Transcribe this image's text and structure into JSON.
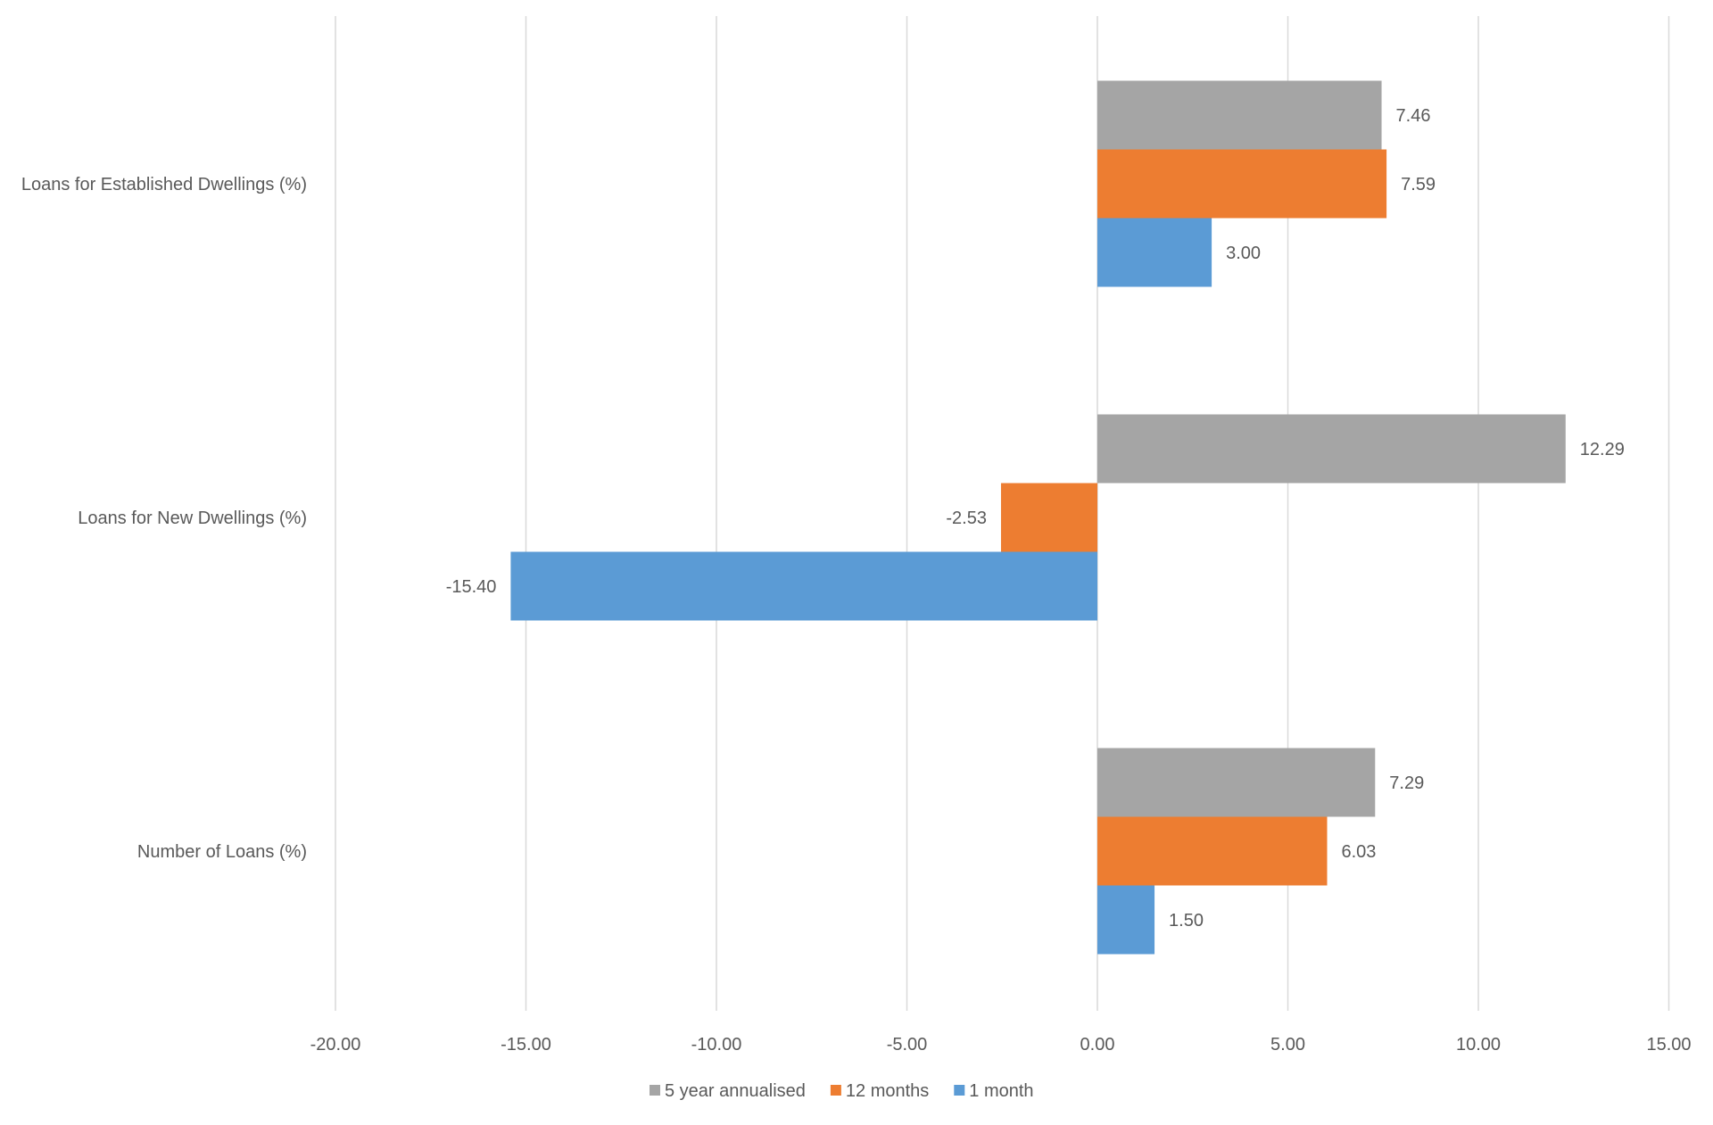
{
  "chart_data": {
    "type": "bar",
    "orientation": "horizontal",
    "categories": [
      "Loans for Established Dwellings (%)",
      "Loans for New Dwellings (%)",
      "Number of Loans (%)"
    ],
    "series": [
      {
        "name": "5 year annualised",
        "color": "#A5A5A5",
        "values": [
          7.46,
          12.29,
          7.29
        ],
        "labels": [
          "7.46",
          "12.29",
          "7.29"
        ]
      },
      {
        "name": "12 months",
        "color": "#ED7D31",
        "values": [
          7.59,
          -2.53,
          6.03
        ],
        "labels": [
          "7.59",
          "-2.53",
          "6.03"
        ]
      },
      {
        "name": "1 month",
        "color": "#5B9BD5",
        "values": [
          3.0,
          -15.4,
          1.5
        ],
        "labels": [
          "3.00",
          "-15.40",
          "1.50"
        ]
      }
    ],
    "xlim": [
      -20,
      15
    ],
    "xticks": [
      -20,
      -15,
      -10,
      -5,
      0,
      5,
      10,
      15
    ],
    "xtick_labels": [
      "-20.00",
      "-15.00",
      "-10.00",
      "-5.00",
      "0.00",
      "5.00",
      "10.00",
      "15.00"
    ],
    "grid": "vertical",
    "legend": "bottom",
    "title": "",
    "xlabel": "",
    "ylabel": ""
  }
}
